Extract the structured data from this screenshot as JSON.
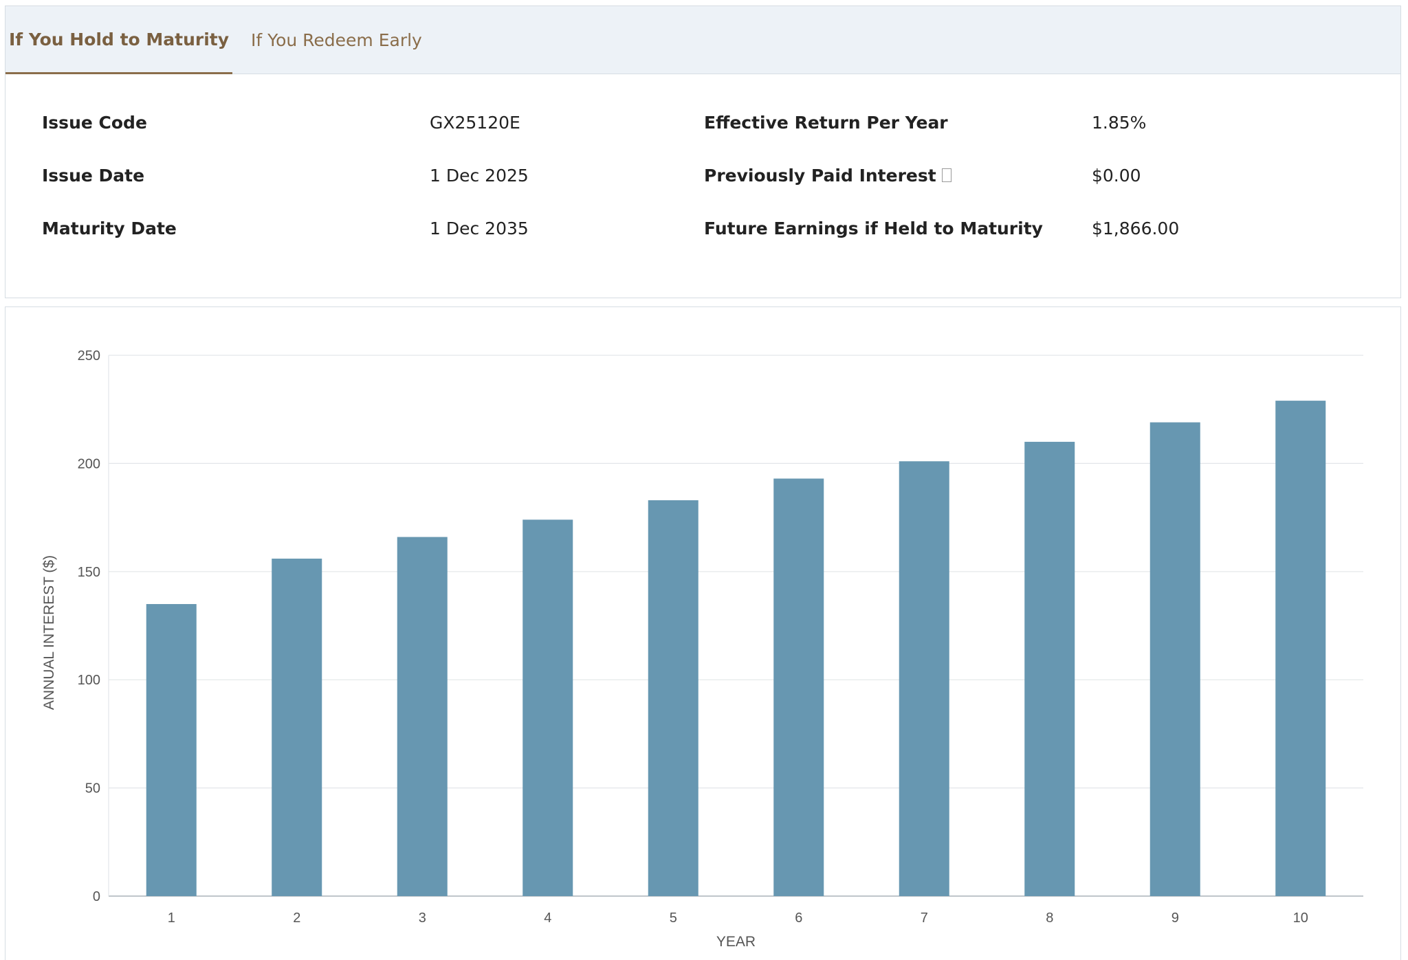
{
  "tabs": [
    {
      "label": "If You Hold to Maturity",
      "active": true
    },
    {
      "label": "If You Redeem Early",
      "active": false
    }
  ],
  "details": {
    "issue_code": {
      "label": "Issue Code",
      "value": "GX25120E"
    },
    "issue_date": {
      "label": "Issue Date",
      "value": "1 Dec 2025"
    },
    "maturity_date": {
      "label": "Maturity Date",
      "value": "1 Dec 2035"
    },
    "effective_return": {
      "label": "Effective Return Per Year",
      "value": "1.85%"
    },
    "previously_paid": {
      "label": "Previously Paid Interest",
      "value": "$0.00"
    },
    "future_earnings": {
      "label": "Future Earnings if Held to Maturity",
      "value": "$1,866.00"
    }
  },
  "colors": {
    "accent": "#8a6d4a",
    "bar": "#6797b1",
    "tab_bar_bg": "#edf2f7"
  },
  "chart_data": {
    "type": "bar",
    "categories": [
      "1",
      "2",
      "3",
      "4",
      "5",
      "6",
      "7",
      "8",
      "9",
      "10"
    ],
    "values": [
      135,
      156,
      166,
      174,
      183,
      193,
      201,
      210,
      219,
      229
    ],
    "xlabel": "YEAR",
    "ylabel": "ANNUAL INTEREST ($)",
    "ylim": [
      0,
      250
    ],
    "yticks": [
      0,
      50,
      100,
      150,
      200,
      250
    ],
    "grid": true,
    "legend": "none"
  }
}
